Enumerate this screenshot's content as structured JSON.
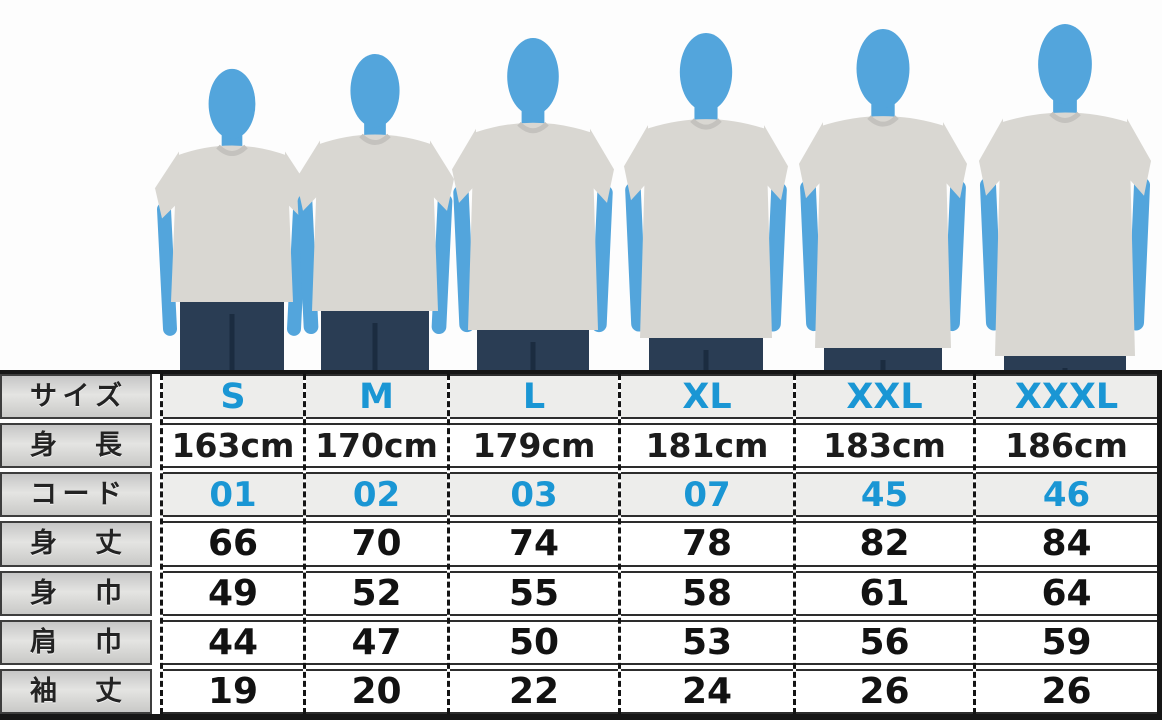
{
  "colors": {
    "accent_blue": "#1a96d4",
    "figure_blue": "#53a5dc",
    "shirt_gray": "#d9d7d2",
    "jeans_navy": "#2a3d54",
    "jeans_crease": "#1b2c40",
    "label_cell_border": "#3d3d3d",
    "tinted_row_bg": "#ededeb",
    "text_dark": "#1c1c1c"
  },
  "figures": [
    {
      "size": "S"
    },
    {
      "size": "M"
    },
    {
      "size": "L"
    },
    {
      "size": "XL"
    },
    {
      "size": "XXL"
    },
    {
      "size": "XXXL"
    }
  ],
  "table": {
    "row_labels": [
      "サイズ",
      "身長",
      "コード",
      "身丈",
      "身巾",
      "肩巾",
      "袖丈"
    ],
    "columns": [
      {
        "size": "S",
        "height": "163cm",
        "code": "01",
        "body_length": "66",
        "body_width": "49",
        "shoulder_width": "44",
        "sleeve_length": "19"
      },
      {
        "size": "M",
        "height": "170cm",
        "code": "02",
        "body_length": "70",
        "body_width": "52",
        "shoulder_width": "47",
        "sleeve_length": "20"
      },
      {
        "size": "L",
        "height": "179cm",
        "code": "03",
        "body_length": "74",
        "body_width": "55",
        "shoulder_width": "50",
        "sleeve_length": "22"
      },
      {
        "size": "XL",
        "height": "181cm",
        "code": "07",
        "body_length": "78",
        "body_width": "58",
        "shoulder_width": "53",
        "sleeve_length": "24"
      },
      {
        "size": "XXL",
        "height": "183cm",
        "code": "45",
        "body_length": "82",
        "body_width": "61",
        "shoulder_width": "56",
        "sleeve_length": "26"
      },
      {
        "size": "XXXL",
        "height": "186cm",
        "code": "46",
        "body_length": "84",
        "body_width": "64",
        "shoulder_width": "59",
        "sleeve_length": "26"
      }
    ]
  },
  "chart_data": {
    "type": "table",
    "columns": [
      "S",
      "M",
      "L",
      "XL",
      "XXL",
      "XXXL"
    ],
    "rows": [
      {
        "label": "身長",
        "values": [
          "163cm",
          "170cm",
          "179cm",
          "181cm",
          "183cm",
          "186cm"
        ]
      },
      {
        "label": "コード",
        "values": [
          "01",
          "02",
          "03",
          "07",
          "45",
          "46"
        ]
      },
      {
        "label": "身丈",
        "values": [
          66,
          70,
          74,
          78,
          82,
          84
        ]
      },
      {
        "label": "身巾",
        "values": [
          49,
          52,
          55,
          58,
          61,
          64
        ]
      },
      {
        "label": "肩巾",
        "values": [
          44,
          47,
          50,
          53,
          56,
          59
        ]
      },
      {
        "label": "袖丈",
        "values": [
          19,
          20,
          22,
          24,
          26,
          26
        ]
      }
    ]
  }
}
